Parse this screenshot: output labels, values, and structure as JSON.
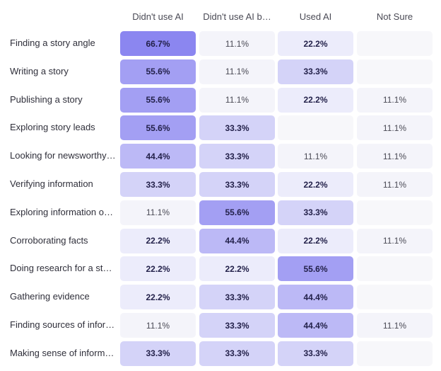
{
  "chart_data": {
    "type": "heatmap",
    "columns": [
      "Didn't use AI",
      "Didn't use AI b…",
      "Used AI",
      "Not Sure"
    ],
    "rows": [
      "Finding a story angle",
      "Writing a story",
      "Publishing a story",
      "Exploring story leads",
      "Looking for newsworthy …",
      "Verifying information",
      "Exploring information or…",
      "Corroborating facts",
      "Doing research for a sto…",
      "Gathering evidence",
      "Finding sources of infor…",
      "Making sense of informa…"
    ],
    "values": [
      [
        "66.7%",
        "11.1%",
        "22.2%",
        ""
      ],
      [
        "55.6%",
        "11.1%",
        "33.3%",
        ""
      ],
      [
        "55.6%",
        "11.1%",
        "22.2%",
        "11.1%"
      ],
      [
        "55.6%",
        "33.3%",
        "",
        "11.1%"
      ],
      [
        "44.4%",
        "33.3%",
        "11.1%",
        "11.1%"
      ],
      [
        "33.3%",
        "33.3%",
        "22.2%",
        "11.1%"
      ],
      [
        "11.1%",
        "55.6%",
        "33.3%",
        ""
      ],
      [
        "22.2%",
        "44.4%",
        "22.2%",
        "11.1%"
      ],
      [
        "22.2%",
        "22.2%",
        "55.6%",
        ""
      ],
      [
        "22.2%",
        "33.3%",
        "44.4%",
        ""
      ],
      [
        "11.1%",
        "33.3%",
        "44.4%",
        "11.1%"
      ],
      [
        "33.3%",
        "33.3%",
        "33.3%",
        ""
      ]
    ],
    "colors": {
      "empty": "#f7f7fa",
      "low": "#f4f4fa",
      "scale_light": "#ececfb",
      "scale_dark": "#8b86f0",
      "text_dark": "#23214a",
      "text_light": "#4a4a55"
    }
  }
}
